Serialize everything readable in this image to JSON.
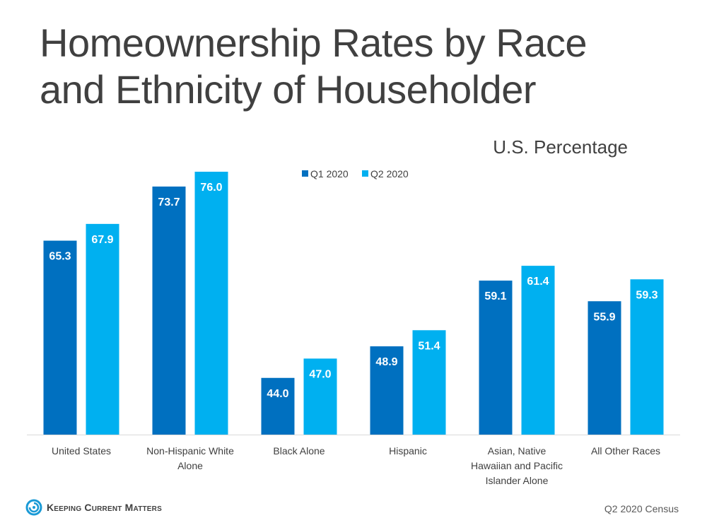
{
  "title_line1": "Homeownership Rates by Race",
  "title_line2": "and Ethnicity of Householder",
  "subtitle": "U.S. Percentage",
  "source": "Q2 2020 Census",
  "logo_text": "Keeping Current Matters",
  "colors": {
    "q1": "#0070c0",
    "q2": "#00b0f0"
  },
  "chart_data": {
    "type": "bar",
    "categories": [
      [
        "United States"
      ],
      [
        "Non-Hispanic White",
        "Alone"
      ],
      [
        "Black Alone"
      ],
      [
        "Hispanic"
      ],
      [
        "Asian, Native",
        "Hawaiian and Pacific",
        "Islander Alone"
      ],
      [
        "All Other Races"
      ]
    ],
    "series": [
      {
        "name": "Q1 2020",
        "values": [
          65.3,
          73.7,
          44.0,
          48.9,
          59.1,
          55.9
        ]
      },
      {
        "name": "Q2 2020",
        "values": [
          67.9,
          76.0,
          47.0,
          51.4,
          61.4,
          59.3
        ]
      }
    ],
    "ylim": [
      35.2,
      77
    ],
    "grid": false,
    "legend": "top-center",
    "data_labels": true
  }
}
